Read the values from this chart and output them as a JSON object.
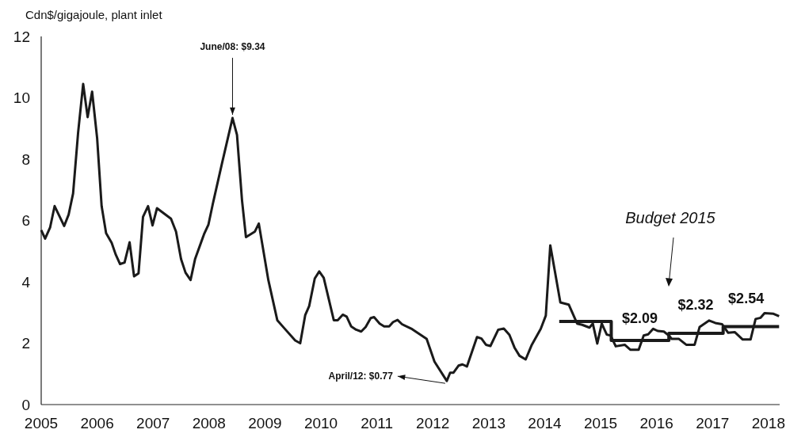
{
  "chart_data": {
    "type": "line",
    "ylabel": "Cdn$/gigajoule, plant inlet",
    "xlim": [
      2005,
      2018.2
    ],
    "xticks": [
      2005,
      2006,
      2007,
      2008,
      2009,
      2010,
      2011,
      2012,
      2013,
      2014,
      2015,
      2016,
      2017,
      2018
    ],
    "ylim": [
      0,
      12
    ],
    "yticks": [
      0,
      2,
      4,
      6,
      8,
      10,
      12
    ],
    "grid": false,
    "line_style": "solid",
    "series": [
      {
        "type": "line",
        "color": "#1a1a1a",
        "x": [
          2005.0,
          2005.07,
          2005.16,
          2005.24,
          2005.41,
          2005.49,
          2005.57,
          2005.66,
          2005.75,
          2005.83,
          2005.91,
          2006.0,
          2006.08,
          2006.16,
          2006.26,
          2006.33,
          2006.41,
          2006.49,
          2006.58,
          2006.66,
          2006.74,
          2006.82,
          2006.91,
          2006.99,
          2007.07,
          2007.32,
          2007.41,
          2007.5,
          2007.58,
          2007.67,
          2007.75,
          2007.91,
          2007.99,
          2008.07,
          2008.23,
          2008.42,
          2008.5,
          2008.59,
          2008.66,
          2008.82,
          2008.89,
          2009.06,
          2009.22,
          2009.34,
          2009.54,
          2009.63,
          2009.72,
          2009.79,
          2009.89,
          2009.97,
          2010.05,
          2010.23,
          2010.3,
          2010.39,
          2010.46,
          2010.54,
          2010.63,
          2010.72,
          2010.8,
          2010.89,
          2010.95,
          2011.05,
          2011.13,
          2011.22,
          2011.29,
          2011.37,
          2011.45,
          2011.63,
          2011.89,
          2012.03,
          2012.25,
          2012.31,
          2012.37,
          2012.46,
          2012.53,
          2012.61,
          2012.79,
          2012.87,
          2012.95,
          2013.03,
          2013.17,
          2013.27,
          2013.37,
          2013.46,
          2013.55,
          2013.66,
          2013.77,
          2013.93,
          2014.02,
          2014.1,
          2014.18,
          2014.28,
          2014.43,
          2014.58,
          2014.67,
          2014.8,
          2014.86,
          2014.94,
          2015.02,
          2015.11,
          2015.18,
          2015.27,
          2015.43,
          2015.53,
          2015.68,
          2015.77,
          2015.85,
          2015.94,
          2016.02,
          2016.13,
          2016.22,
          2016.27,
          2016.4,
          2016.53,
          2016.68,
          2016.77,
          2016.94,
          2017.05,
          2017.17,
          2017.28,
          2017.4,
          2017.54,
          2017.68,
          2017.77,
          2017.86,
          2017.93,
          2018.09,
          2018.19
        ],
        "values": [
          5.69,
          5.41,
          5.78,
          6.47,
          5.82,
          6.19,
          6.88,
          8.87,
          10.45,
          9.37,
          10.2,
          8.68,
          6.47,
          5.59,
          5.27,
          4.9,
          4.58,
          4.63,
          5.29,
          4.18,
          4.28,
          6.12,
          6.47,
          5.84,
          6.4,
          6.06,
          5.64,
          4.74,
          4.3,
          4.06,
          4.74,
          5.55,
          5.87,
          6.56,
          7.85,
          9.34,
          8.79,
          6.65,
          5.46,
          5.64,
          5.9,
          4.06,
          2.75,
          2.5,
          2.09,
          2.0,
          2.92,
          3.21,
          4.11,
          4.34,
          4.13,
          2.75,
          2.75,
          2.93,
          2.87,
          2.55,
          2.44,
          2.38,
          2.53,
          2.82,
          2.85,
          2.64,
          2.55,
          2.55,
          2.69,
          2.76,
          2.62,
          2.46,
          2.14,
          1.4,
          0.77,
          1.04,
          1.04,
          1.27,
          1.31,
          1.24,
          2.2,
          2.15,
          1.95,
          1.91,
          2.44,
          2.48,
          2.27,
          1.86,
          1.59,
          1.47,
          1.95,
          2.47,
          2.9,
          5.19,
          4.37,
          3.33,
          3.26,
          2.64,
          2.6,
          2.51,
          2.64,
          1.99,
          2.64,
          2.28,
          2.25,
          1.9,
          1.95,
          1.79,
          1.79,
          2.25,
          2.29,
          2.47,
          2.4,
          2.38,
          2.25,
          2.14,
          2.14,
          1.95,
          1.95,
          2.53,
          2.74,
          2.66,
          2.62,
          2.34,
          2.36,
          2.12,
          2.12,
          2.79,
          2.83,
          2.98,
          2.96,
          2.88
        ]
      },
      {
        "type": "step",
        "color": "#1a1a1a",
        "x": [
          2014.26,
          2015.19,
          2016.22,
          2017.19,
          2018.19
        ],
        "values": [
          2.71,
          2.09,
          2.32,
          2.54,
          2.54
        ]
      }
    ],
    "annotations": [
      {
        "text": "June/08: $9.34",
        "x": 2008.42,
        "y": 9.34
      },
      {
        "text": "April/12: $0.77",
        "x": 2012.25,
        "y": 0.77
      },
      "Budget 2015",
      {
        "text": "$2.09",
        "x": 2015.7,
        "y": 2.09
      },
      {
        "text": "$2.32",
        "x": 2016.7,
        "y": 2.32
      },
      {
        "text": "$2.54",
        "x": 2017.6,
        "y": 2.54
      }
    ]
  }
}
